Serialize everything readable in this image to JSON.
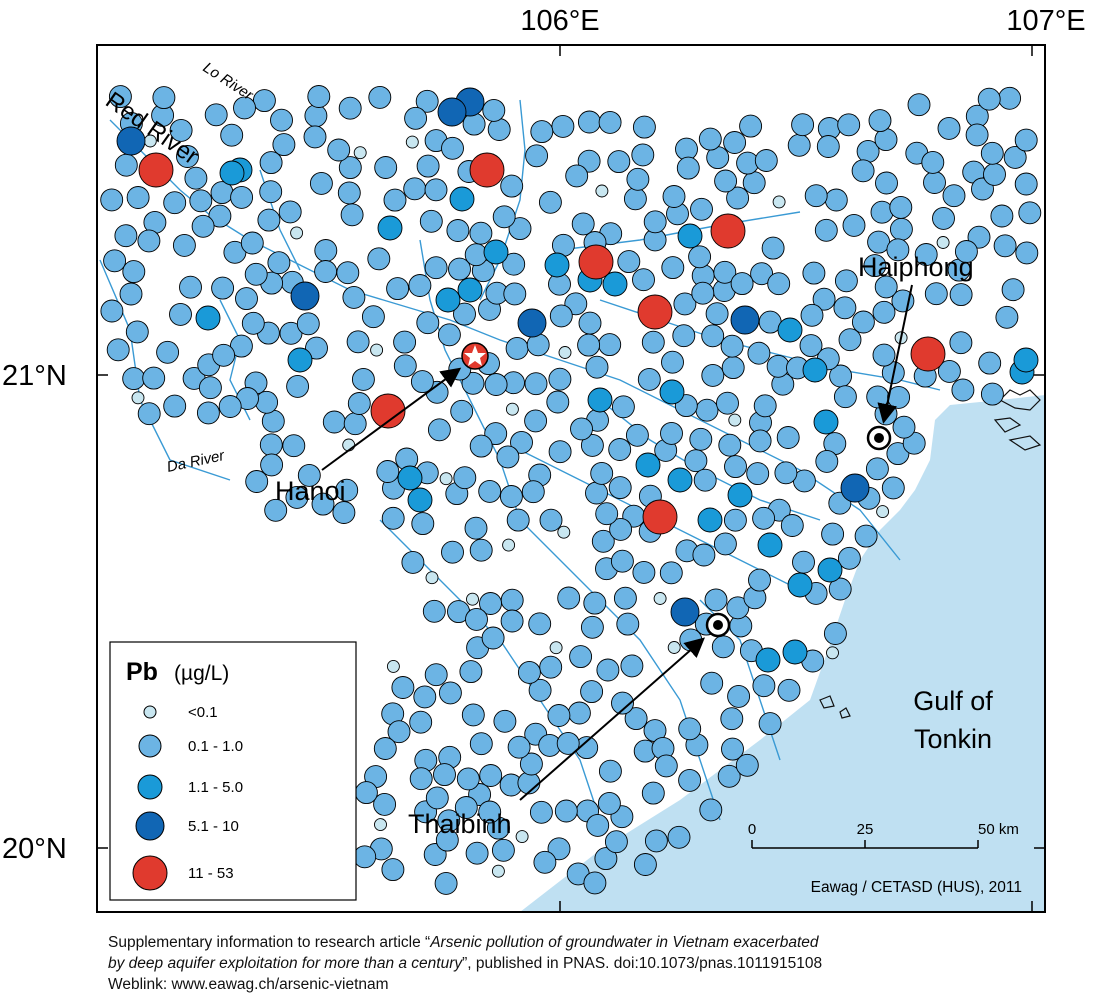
{
  "axes": {
    "lon_labels": [
      "106°E",
      "107°E"
    ],
    "lat_labels": [
      "21°N",
      "20°N"
    ]
  },
  "rivers": [
    "Red River",
    "Lo River",
    "Da River"
  ],
  "cities": {
    "hanoi": "Hanoi",
    "haiphong": "Haiphong",
    "thaibinh": "Thaibinh"
  },
  "sea_label": [
    "Gulf of",
    "Tonkin"
  ],
  "legend": {
    "element": "Pb",
    "unit": "(µg/L)",
    "classes": [
      {
        "label": "<0.1",
        "color": "#c8e6f0"
      },
      {
        "label": "0.1 - 1.0",
        "color": "#6cb4e4"
      },
      {
        "label": "1.1 - 5.0",
        "color": "#1a9ad8"
      },
      {
        "label": "5.1 - 10",
        "color": "#1166b4"
      },
      {
        "label": "11 - 53",
        "color": "#e03a2e"
      }
    ]
  },
  "scale_bar": {
    "ticks": [
      "0",
      "25",
      "50 km"
    ]
  },
  "credit": "Eawag / CETASD (HUS), 2011",
  "caption": {
    "line1_prefix": "Supplementary information to research article “",
    "title_part1": "Arsenic pollution of groundwater in Vietnam exacerbated",
    "title_part2": "by deep aquifer exploitation for more than a century",
    "line2_suffix": "”, published in PNAS. doi:10.1073/pnas.1011915108",
    "weblink": "Weblink: www.eawag.ch/arsenic-vietnam"
  },
  "colors": {
    "sea": "#bfe0f2",
    "river": "#3a9ad4",
    "frame": "#000000"
  }
}
